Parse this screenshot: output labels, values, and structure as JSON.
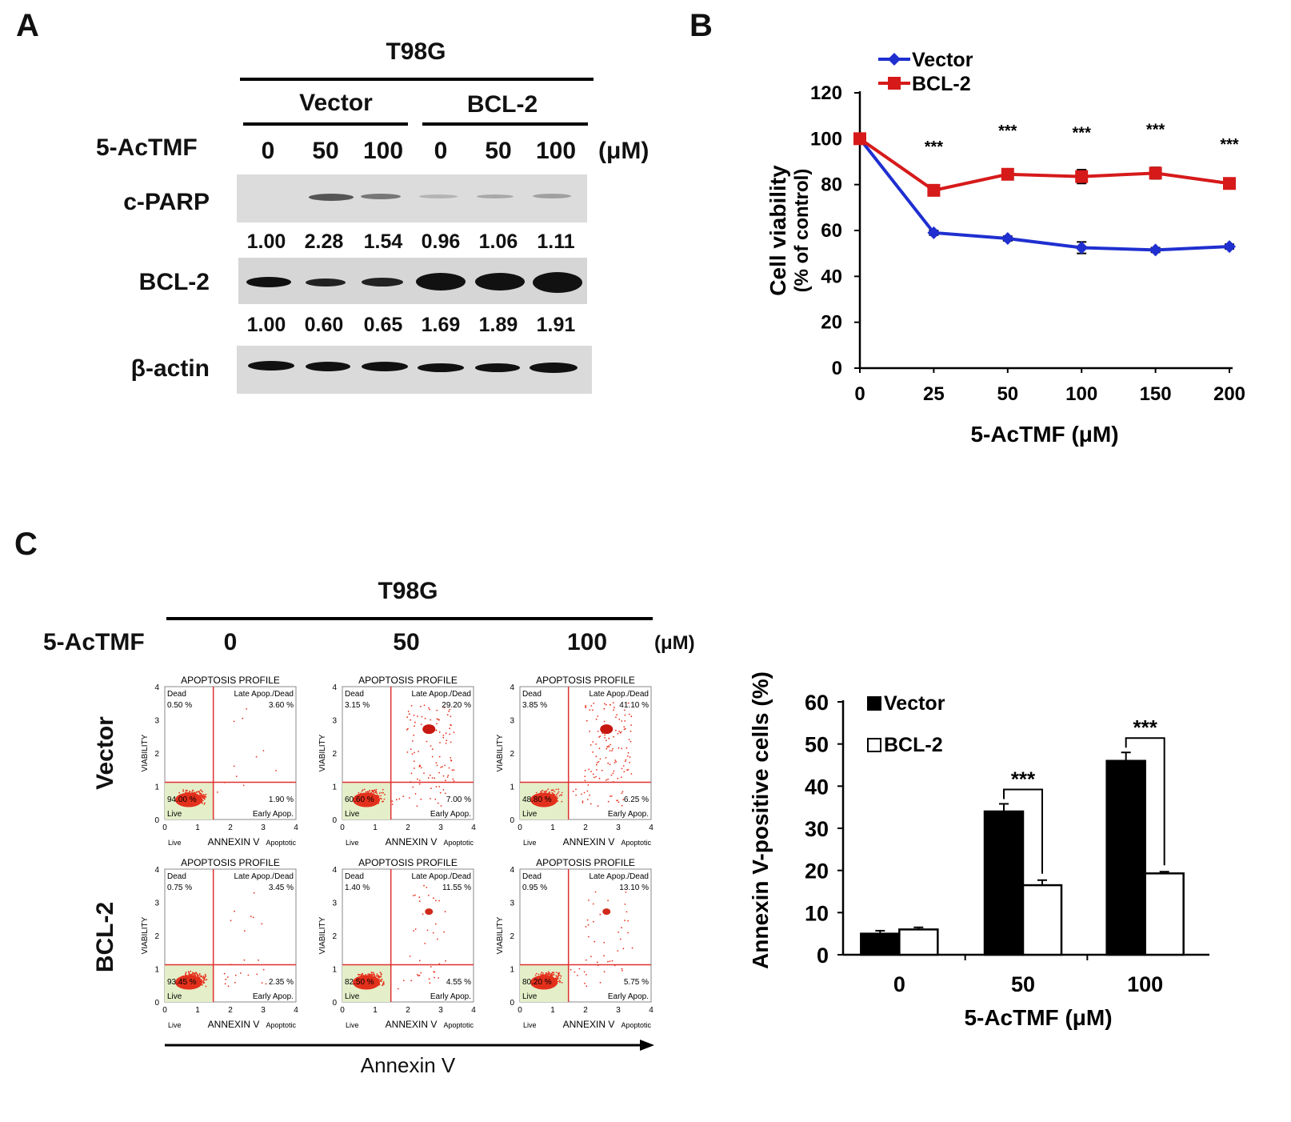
{
  "panel_a": {
    "letter": "A",
    "cell_line": "T98G",
    "groups": [
      "Vector",
      "BCL-2"
    ],
    "treatment_label": "5-AcTMF",
    "unit": "(μM)",
    "lanes": [
      "0",
      "50",
      "100",
      "0",
      "50",
      "100"
    ],
    "rows": [
      {
        "label": "c-PARP",
        "values": [
          "1.00",
          "2.28",
          "1.54",
          "0.96",
          "1.06",
          "1.11"
        ]
      },
      {
        "label": "BCL-2",
        "values": [
          "1.00",
          "0.60",
          "0.65",
          "1.69",
          "1.89",
          "1.91"
        ]
      },
      {
        "label": "β-actin"
      }
    ]
  },
  "panel_c": {
    "letter": "C",
    "cell_line": "T98G",
    "treatment_label": "5-AcTMF",
    "unit": "(μM)",
    "doses": [
      "0",
      "50",
      "100"
    ],
    "row_labels": [
      "Vector",
      "BCL-2"
    ],
    "x_arrow_label": "Annexin V",
    "flow": {
      "title": "APOPTOSIS PROFILE",
      "ylabel": "VIABILITY",
      "xlabel": "ANNEXIN V",
      "x_left": "Live",
      "x_right": "Apoptotic",
      "quadrant_names": {
        "dead": "Dead",
        "late": "Late Apop./Dead",
        "live": "Live",
        "early": "Early Apop."
      },
      "plots": [
        {
          "dead": "0.50 %",
          "late": "3.60 %",
          "live": "94.00 %",
          "early": "1.90 %"
        },
        {
          "dead": "3.15 %",
          "late": "29.20 %",
          "live": "60.60 %",
          "early": "7.00 %"
        },
        {
          "dead": "3.85 %",
          "late": "41.10 %",
          "live": "48.80 %",
          "early": "6.25 %"
        },
        {
          "dead": "0.75 %",
          "late": "3.45 %",
          "live": "93.45 %",
          "early": "2.35 %"
        },
        {
          "dead": "1.40 %",
          "late": "11.55 %",
          "live": "82.50 %",
          "early": "4.55 %"
        },
        {
          "dead": "0.95 %",
          "late": "13.10 %",
          "live": "80.20 %",
          "early": "5.75 %"
        }
      ]
    }
  },
  "chart_data": [
    {
      "panel": "B",
      "type": "line",
      "title": "",
      "xlabel": "5-AcTMF (μM)",
      "ylabel": "Cell viability (% of control)",
      "x": [
        0,
        25,
        50,
        100,
        150,
        200
      ],
      "x_tick_labels": [
        "0",
        "25",
        "50",
        "100",
        "150",
        "200"
      ],
      "ylim": [
        0,
        120
      ],
      "y_ticks": [
        0,
        20,
        40,
        60,
        80,
        100,
        120
      ],
      "legend": "top-left",
      "series": [
        {
          "name": "Vector",
          "color": "#1f2fd0",
          "marker": "diamond",
          "values": [
            100,
            59,
            56.5,
            52.5,
            51.5,
            53
          ],
          "errors": [
            0,
            1,
            1,
            2.5,
            1,
            1
          ]
        },
        {
          "name": "BCL-2",
          "color": "#d61a1a",
          "marker": "square",
          "values": [
            100,
            77.5,
            84.5,
            83.5,
            85,
            80.5
          ],
          "errors": [
            0,
            1.5,
            1.5,
            3,
            2.5,
            1
          ]
        }
      ],
      "annotations": [
        "***",
        "***",
        "***",
        "***",
        "***"
      ]
    },
    {
      "panel": "C-bar",
      "type": "bar",
      "title": "",
      "xlabel": "5-AcTMF (μM)",
      "ylabel": "Annexin V-positive cells (%)",
      "categories": [
        "0",
        "50",
        "100"
      ],
      "ylim": [
        0,
        60
      ],
      "y_ticks": [
        0,
        10,
        20,
        30,
        40,
        50,
        60
      ],
      "legend": "top-left",
      "series": [
        {
          "name": "Vector",
          "color": "#000000",
          "values": [
            5,
            34,
            46
          ],
          "errors": [
            0.7,
            1.8,
            2
          ]
        },
        {
          "name": "BCL-2",
          "color": "#ffffff",
          "values": [
            6,
            16.5,
            19.3
          ],
          "errors": [
            0.5,
            1.2,
            0.4
          ]
        }
      ],
      "significance": [
        {
          "category": "50",
          "label": "***"
        },
        {
          "category": "100",
          "label": "***"
        }
      ]
    }
  ]
}
